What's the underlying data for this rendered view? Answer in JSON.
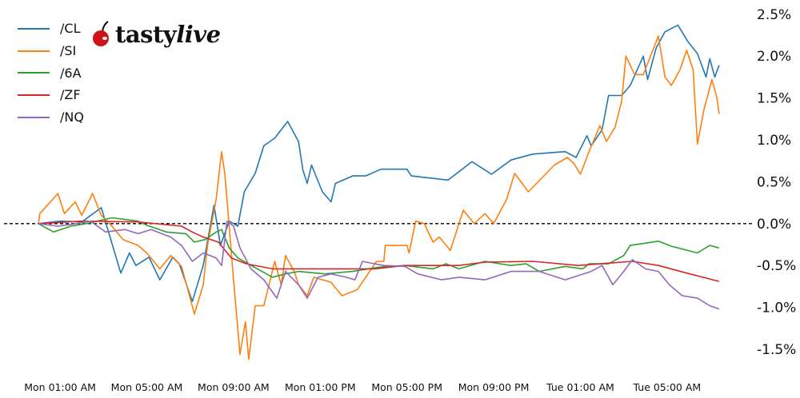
{
  "chart_data": {
    "type": "line",
    "title": "",
    "xlabel": "",
    "ylabel": "",
    "xlim": [
      "Mon 00:00",
      "Tue 07:22"
    ],
    "ylim": [
      -1.7,
      2.67
    ],
    "y_axis_side": "right",
    "grid": false,
    "zero_line": {
      "value": 0,
      "style": "dashed",
      "color": "#000000"
    },
    "legend_placement": "top-left",
    "x_tick_labels": [
      "Mon 01:00 AM",
      "Mon 05:00 AM",
      "Mon 09:00 AM",
      "Mon 01:00 PM",
      "Mon 05:00 PM",
      "Mon 09:00 PM",
      "Tue 01:00 AM",
      "Tue 05:00 AM"
    ],
    "y_tick_labels": [
      "2.5%",
      "2.0%",
      "1.5%",
      "1.0%",
      "0.5%",
      "0.0%",
      "-0.5%",
      "-1.0%",
      "-1.5%"
    ],
    "series": [
      {
        "name": "/CL",
        "color": "#1f77b4",
        "points": [
          [
            "Mon 00:00",
            0
          ],
          [
            "Mon 01:00",
            0.03
          ],
          [
            "Mon 02:00",
            0.02
          ],
          [
            "Mon 02:54",
            0.19
          ],
          [
            "Mon 03:48",
            -0.59
          ],
          [
            "Mon 04:12",
            -0.35
          ],
          [
            "Mon 04:30",
            -0.5
          ],
          [
            "Mon 05:06",
            -0.4
          ],
          [
            "Mon 05:36",
            -0.67
          ],
          [
            "Mon 06:12",
            -0.4
          ],
          [
            "Mon 06:30",
            -0.48
          ],
          [
            "Mon 07:06",
            -0.93
          ],
          [
            "Mon 07:36",
            -0.5
          ],
          [
            "Mon 08:06",
            0.22
          ],
          [
            "Mon 08:24",
            -0.26
          ],
          [
            "Mon 08:48",
            0.03
          ],
          [
            "Mon 09:12",
            -0.03
          ],
          [
            "Mon 09:30",
            0.38
          ],
          [
            "Mon 10:00",
            0.6
          ],
          [
            "Mon 10:24",
            0.93
          ],
          [
            "Mon 10:54",
            1.02
          ],
          [
            "Mon 11:30",
            1.22
          ],
          [
            "Mon 12:00",
            0.98
          ],
          [
            "Mon 12:12",
            0.64
          ],
          [
            "Mon 12:24",
            0.48
          ],
          [
            "Mon 12:36",
            0.7
          ],
          [
            "Mon 13:06",
            0.38
          ],
          [
            "Mon 13:30",
            0.26
          ],
          [
            "Mon 13:42",
            0.48
          ],
          [
            "Mon 14:30",
            0.57
          ],
          [
            "Mon 15:06",
            0.57
          ],
          [
            "Mon 15:48",
            0.65
          ],
          [
            "Mon 17:00",
            0.65
          ],
          [
            "Mon 17:12",
            0.57
          ],
          [
            "Mon 18:12",
            0.54
          ],
          [
            "Mon 18:54",
            0.52
          ],
          [
            "Mon 20:00",
            0.74
          ],
          [
            "Mon 20:54",
            0.59
          ],
          [
            "Mon 21:48",
            0.76
          ],
          [
            "Mon 22:48",
            0.83
          ],
          [
            "Tue 00:18",
            0.86
          ],
          [
            "Tue 00:48",
            0.79
          ],
          [
            "Tue 01:18",
            1.05
          ],
          [
            "Tue 01:30",
            0.93
          ],
          [
            "Tue 02:00",
            1.12
          ],
          [
            "Tue 02:18",
            1.53
          ],
          [
            "Tue 02:54",
            1.53
          ],
          [
            "Tue 03:18",
            1.65
          ],
          [
            "Tue 03:54",
            2.0
          ],
          [
            "Tue 04:06",
            1.72
          ],
          [
            "Tue 04:30",
            2.1
          ],
          [
            "Tue 04:54",
            2.29
          ],
          [
            "Tue 05:30",
            2.37
          ],
          [
            "Tue 05:58",
            2.17
          ],
          [
            "Tue 06:24",
            2.03
          ],
          [
            "Tue 06:48",
            1.75
          ],
          [
            "Tue 06:58",
            1.97
          ],
          [
            "Tue 07:12",
            1.75
          ],
          [
            "Tue 07:24",
            1.89
          ]
        ]
      },
      {
        "name": "/SI",
        "color": "#ff7f0e",
        "points": [
          [
            "Mon 00:00",
            0
          ],
          [
            "Mon 00:04",
            0.12
          ],
          [
            "Mon 00:54",
            0.36
          ],
          [
            "Mon 01:12",
            0.12
          ],
          [
            "Mon 01:42",
            0.26
          ],
          [
            "Mon 02:00",
            0.1
          ],
          [
            "Mon 02:30",
            0.36
          ],
          [
            "Mon 02:54",
            0.1
          ],
          [
            "Mon 03:24",
            -0.03
          ],
          [
            "Mon 03:54",
            -0.19
          ],
          [
            "Mon 04:36",
            -0.26
          ],
          [
            "Mon 05:00",
            -0.35
          ],
          [
            "Mon 05:36",
            -0.54
          ],
          [
            "Mon 06:06",
            -0.38
          ],
          [
            "Mon 06:36",
            -0.51
          ],
          [
            "Mon 07:12",
            -1.08
          ],
          [
            "Mon 07:36",
            -0.73
          ],
          [
            "Mon 07:48",
            -0.26
          ],
          [
            "Mon 08:12",
            0.29
          ],
          [
            "Mon 08:27",
            0.86
          ],
          [
            "Mon 08:36",
            0.6
          ],
          [
            "Mon 08:48",
            -0.03
          ],
          [
            "Mon 09:00",
            -0.67
          ],
          [
            "Mon 09:18",
            -1.56
          ],
          [
            "Mon 09:33",
            -1.17
          ],
          [
            "Mon 09:42",
            -1.62
          ],
          [
            "Mon 10:00",
            -0.98
          ],
          [
            "Mon 10:24",
            -0.98
          ],
          [
            "Mon 10:54",
            -0.45
          ],
          [
            "Mon 11:12",
            -0.73
          ],
          [
            "Mon 11:24",
            -0.38
          ],
          [
            "Mon 11:48",
            -0.57
          ],
          [
            "Mon 12:00",
            -0.73
          ],
          [
            "Mon 12:24",
            -0.86
          ],
          [
            "Mon 12:42",
            -0.64
          ],
          [
            "Mon 13:30",
            -0.7
          ],
          [
            "Mon 14:00",
            -0.86
          ],
          [
            "Mon 14:42",
            -0.79
          ],
          [
            "Mon 15:06",
            -0.64
          ],
          [
            "Mon 15:36",
            -0.45
          ],
          [
            "Mon 15:56",
            -0.45
          ],
          [
            "Mon 16:00",
            -0.26
          ],
          [
            "Mon 17:00",
            -0.26
          ],
          [
            "Mon 17:06",
            -0.35
          ],
          [
            "Mon 17:24",
            0.03
          ],
          [
            "Mon 17:48",
            0
          ],
          [
            "Mon 18:12",
            -0.22
          ],
          [
            "Mon 18:30",
            -0.16
          ],
          [
            "Mon 19:00",
            -0.32
          ],
          [
            "Mon 19:24",
            0
          ],
          [
            "Mon 19:36",
            0.16
          ],
          [
            "Mon 20:06",
            0
          ],
          [
            "Mon 20:36",
            0.12
          ],
          [
            "Mon 21:00",
            0
          ],
          [
            "Mon 21:36",
            0.29
          ],
          [
            "Mon 21:58",
            0.6
          ],
          [
            "Mon 22:36",
            0.38
          ],
          [
            "Mon 23:48",
            0.7
          ],
          [
            "Tue 00:24",
            0.79
          ],
          [
            "Tue 00:42",
            0.72
          ],
          [
            "Tue 01:00",
            0.59
          ],
          [
            "Tue 01:24",
            0.86
          ],
          [
            "Tue 01:54",
            1.17
          ],
          [
            "Tue 02:12",
            0.98
          ],
          [
            "Tue 02:36",
            1.15
          ],
          [
            "Tue 02:54",
            1.46
          ],
          [
            "Tue 03:06",
            2.0
          ],
          [
            "Tue 03:30",
            1.78
          ],
          [
            "Tue 03:54",
            1.78
          ],
          [
            "Tue 04:36",
            2.24
          ],
          [
            "Tue 04:54",
            1.75
          ],
          [
            "Tue 05:12",
            1.65
          ],
          [
            "Tue 05:36",
            1.84
          ],
          [
            "Tue 05:54",
            2.07
          ],
          [
            "Tue 06:12",
            1.84
          ],
          [
            "Tue 06:24",
            0.95
          ],
          [
            "Tue 06:42",
            1.36
          ],
          [
            "Tue 07:04",
            1.72
          ],
          [
            "Tue 07:18",
            1.5
          ],
          [
            "Tue 07:24",
            1.31
          ]
        ]
      },
      {
        "name": "/6A",
        "color": "#2ca02c",
        "points": [
          [
            "Mon 00:00",
            0
          ],
          [
            "Mon 00:42",
            -0.1
          ],
          [
            "Mon 01:30",
            -0.03
          ],
          [
            "Mon 02:12",
            0
          ],
          [
            "Mon 03:24",
            0.07
          ],
          [
            "Mon 04:36",
            0.03
          ],
          [
            "Mon 05:00",
            -0.02
          ],
          [
            "Mon 05:54",
            -0.1
          ],
          [
            "Mon 06:48",
            -0.12
          ],
          [
            "Mon 07:12",
            -0.22
          ],
          [
            "Mon 07:42",
            -0.19
          ],
          [
            "Mon 08:12",
            -0.1
          ],
          [
            "Mon 08:27",
            -0.07
          ],
          [
            "Mon 08:48",
            -0.29
          ],
          [
            "Mon 09:12",
            -0.41
          ],
          [
            "Mon 10:06",
            -0.54
          ],
          [
            "Mon 10:48",
            -0.64
          ],
          [
            "Mon 11:24",
            -0.6
          ],
          [
            "Mon 12:00",
            -0.57
          ],
          [
            "Mon 13:12",
            -0.6
          ],
          [
            "Mon 14:30",
            -0.57
          ],
          [
            "Mon 15:42",
            -0.52
          ],
          [
            "Mon 16:54",
            -0.5
          ],
          [
            "Mon 18:12",
            -0.54
          ],
          [
            "Mon 18:48",
            -0.48
          ],
          [
            "Mon 19:24",
            -0.54
          ],
          [
            "Mon 20:36",
            -0.45
          ],
          [
            "Mon 21:48",
            -0.5
          ],
          [
            "Mon 22:30",
            -0.48
          ],
          [
            "Mon 23:06",
            -0.57
          ],
          [
            "Tue 00:18",
            -0.51
          ],
          [
            "Tue 01:06",
            -0.54
          ],
          [
            "Tue 01:24",
            -0.48
          ],
          [
            "Tue 02:18",
            -0.48
          ],
          [
            "Tue 03:00",
            -0.38
          ],
          [
            "Tue 03:18",
            -0.26
          ],
          [
            "Tue 04:36",
            -0.21
          ],
          [
            "Tue 05:12",
            -0.27
          ],
          [
            "Tue 06:24",
            -0.35
          ],
          [
            "Tue 06:58",
            -0.26
          ],
          [
            "Tue 07:24",
            -0.29
          ]
        ]
      },
      {
        "name": "/ZF",
        "color": "#d62728",
        "points": [
          [
            "Mon 00:00",
            0
          ],
          [
            "Mon 02:00",
            0.03
          ],
          [
            "Mon 04:36",
            0.02
          ],
          [
            "Mon 06:36",
            -0.03
          ],
          [
            "Mon 07:06",
            -0.1
          ],
          [
            "Mon 07:36",
            -0.16
          ],
          [
            "Mon 08:18",
            -0.22
          ],
          [
            "Mon 08:54",
            -0.41
          ],
          [
            "Mon 09:36",
            -0.48
          ],
          [
            "Mon 10:48",
            -0.54
          ],
          [
            "Mon 13:12",
            -0.54
          ],
          [
            "Mon 15:30",
            -0.54
          ],
          [
            "Mon 16:54",
            -0.5
          ],
          [
            "Mon 19:24",
            -0.5
          ],
          [
            "Mon 20:36",
            -0.46
          ],
          [
            "Mon 22:48",
            -0.45
          ],
          [
            "Tue 00:54",
            -0.5
          ],
          [
            "Tue 03:24",
            -0.45
          ],
          [
            "Tue 04:36",
            -0.5
          ],
          [
            "Tue 05:54",
            -0.59
          ],
          [
            "Tue 07:24",
            -0.69
          ]
        ]
      },
      {
        "name": "/NQ",
        "color": "#9467bd",
        "points": [
          [
            "Mon 00:00",
            0
          ],
          [
            "Mon 00:54",
            -0.03
          ],
          [
            "Mon 01:30",
            -0.01
          ],
          [
            "Mon 02:24",
            0.03
          ],
          [
            "Mon 03:06",
            -0.1
          ],
          [
            "Mon 04:00",
            -0.07
          ],
          [
            "Mon 04:36",
            -0.12
          ],
          [
            "Mon 05:12",
            -0.07
          ],
          [
            "Mon 06:06",
            -0.16
          ],
          [
            "Mon 06:36",
            -0.26
          ],
          [
            "Mon 07:06",
            -0.45
          ],
          [
            "Mon 07:36",
            -0.35
          ],
          [
            "Mon 08:12",
            -0.41
          ],
          [
            "Mon 08:27",
            -0.5
          ],
          [
            "Mon 08:42",
            0.03
          ],
          [
            "Mon 09:00",
            -0.03
          ],
          [
            "Mon 09:18",
            -0.29
          ],
          [
            "Mon 09:48",
            -0.54
          ],
          [
            "Mon 10:24",
            -0.67
          ],
          [
            "Mon 11:00",
            -0.89
          ],
          [
            "Mon 11:24",
            -0.57
          ],
          [
            "Mon 12:00",
            -0.73
          ],
          [
            "Mon 12:24",
            -0.89
          ],
          [
            "Mon 12:54",
            -0.64
          ],
          [
            "Mon 13:30",
            -0.6
          ],
          [
            "Mon 14:12",
            -0.64
          ],
          [
            "Mon 14:36",
            -0.67
          ],
          [
            "Mon 14:57",
            -0.45
          ],
          [
            "Mon 15:30",
            -0.48
          ],
          [
            "Mon 15:56",
            -0.5
          ],
          [
            "Mon 16:54",
            -0.51
          ],
          [
            "Mon 17:30",
            -0.6
          ],
          [
            "Mon 18:36",
            -0.67
          ],
          [
            "Mon 19:24",
            -0.64
          ],
          [
            "Mon 20:36",
            -0.67
          ],
          [
            "Mon 21:48",
            -0.57
          ],
          [
            "Mon 23:06",
            -0.57
          ],
          [
            "Tue 00:18",
            -0.67
          ],
          [
            "Tue 01:30",
            -0.57
          ],
          [
            "Tue 02:00",
            -0.5
          ],
          [
            "Tue 02:30",
            -0.73
          ],
          [
            "Tue 03:00",
            -0.57
          ],
          [
            "Tue 03:24",
            -0.43
          ],
          [
            "Tue 04:00",
            -0.54
          ],
          [
            "Tue 04:36",
            -0.57
          ],
          [
            "Tue 05:06",
            -0.73
          ],
          [
            "Tue 05:42",
            -0.86
          ],
          [
            "Tue 06:24",
            -0.89
          ],
          [
            "Tue 06:58",
            -0.98
          ],
          [
            "Tue 07:24",
            -1.02
          ]
        ]
      }
    ]
  },
  "logo": {
    "text_main": "tasty",
    "text_italic": "live",
    "cherry_color": "#d0101a"
  }
}
